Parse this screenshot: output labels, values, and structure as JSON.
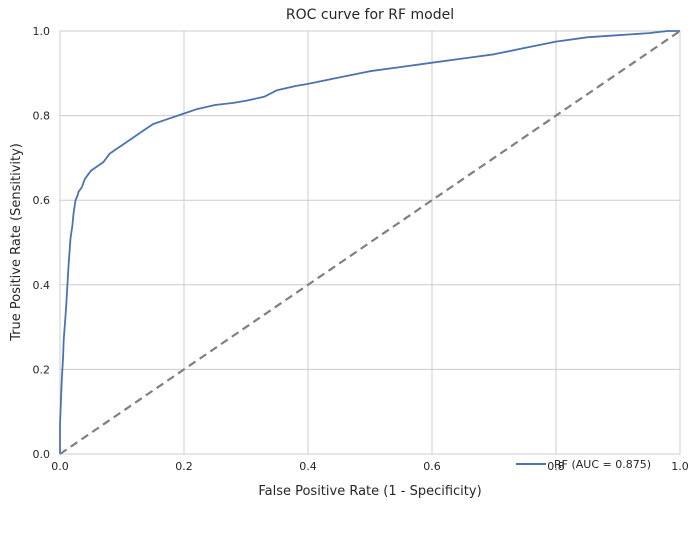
{
  "chart_data": {
    "type": "line",
    "title": "ROC curve for RF model",
    "xlabel": "False Positive Rate (1 - Specificity)",
    "ylabel": "True Positive Rate (Sensitivity)",
    "xlim": [
      0,
      1
    ],
    "ylim": [
      0,
      1
    ],
    "xticks": [
      "0.0",
      "0.2",
      "0.4",
      "0.6",
      "0.8",
      "1.0"
    ],
    "yticks": [
      "0.0",
      "0.2",
      "0.4",
      "0.6",
      "0.8",
      "1.0"
    ],
    "grid": true,
    "legend_position": "lower-right",
    "series": [
      {
        "name": "RF (AUC = 0.875)",
        "color": "#4c72b0",
        "x": [
          0.0,
          0.0,
          0.002,
          0.003,
          0.005,
          0.006,
          0.008,
          0.01,
          0.012,
          0.014,
          0.017,
          0.02,
          0.022,
          0.025,
          0.028,
          0.03,
          0.035,
          0.04,
          0.045,
          0.05,
          0.06,
          0.07,
          0.08,
          0.09,
          0.1,
          0.12,
          0.14,
          0.15,
          0.17,
          0.19,
          0.2,
          0.22,
          0.25,
          0.28,
          0.3,
          0.33,
          0.35,
          0.38,
          0.4,
          0.45,
          0.5,
          0.55,
          0.6,
          0.65,
          0.7,
          0.75,
          0.8,
          0.85,
          0.9,
          0.95,
          0.98,
          1.0
        ],
        "y": [
          0.0,
          0.07,
          0.14,
          0.18,
          0.23,
          0.27,
          0.31,
          0.35,
          0.4,
          0.45,
          0.51,
          0.54,
          0.57,
          0.6,
          0.61,
          0.62,
          0.63,
          0.65,
          0.66,
          0.67,
          0.68,
          0.69,
          0.71,
          0.72,
          0.73,
          0.75,
          0.77,
          0.78,
          0.79,
          0.8,
          0.805,
          0.815,
          0.825,
          0.83,
          0.835,
          0.845,
          0.86,
          0.87,
          0.875,
          0.89,
          0.905,
          0.915,
          0.925,
          0.935,
          0.945,
          0.96,
          0.975,
          0.985,
          0.99,
          0.995,
          1.0,
          1.0
        ]
      },
      {
        "name": "",
        "color": "#808080",
        "dashed": true,
        "x": [
          0,
          1
        ],
        "y": [
          0,
          1
        ]
      }
    ]
  }
}
